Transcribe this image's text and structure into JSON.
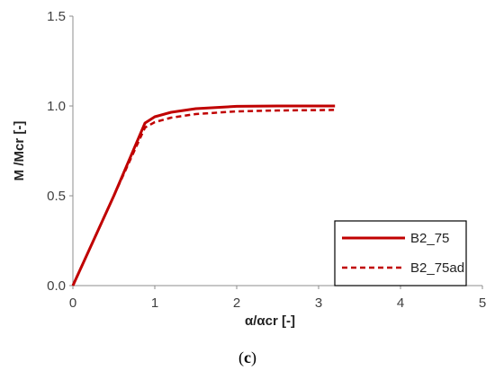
{
  "chart_data": {
    "type": "line",
    "xlabel": "α/αcr [-]",
    "ylabel": "M /Mcr [-]",
    "xlim": [
      0,
      5
    ],
    "ylim": [
      0,
      1.5
    ],
    "x_ticks": [
      "0",
      "1",
      "2",
      "3",
      "4",
      "5"
    ],
    "y_ticks": [
      "0.0",
      "0.5",
      "1.0",
      "1.5"
    ],
    "grid": false,
    "legend_position": "bottom-right",
    "series": [
      {
        "name": "B2_75",
        "style": "solid",
        "color": "#C00000",
        "x": [
          0,
          0.5,
          0.88,
          1.0,
          1.2,
          1.5,
          2.0,
          2.5,
          3.0,
          3.2
        ],
        "y": [
          0,
          0.5,
          0.905,
          0.94,
          0.965,
          0.985,
          0.998,
          1.0,
          1.0,
          1.0
        ]
      },
      {
        "name": "B2_75ad",
        "style": "dashed",
        "color": "#C00000",
        "x": [
          0,
          0.5,
          0.88,
          1.0,
          1.2,
          1.5,
          2.0,
          2.5,
          3.0,
          3.2
        ],
        "y": [
          0,
          0.5,
          0.88,
          0.91,
          0.935,
          0.955,
          0.97,
          0.975,
          0.977,
          0.978
        ]
      }
    ]
  },
  "caption": {
    "open": "(",
    "letter": "c",
    "close": ")"
  }
}
